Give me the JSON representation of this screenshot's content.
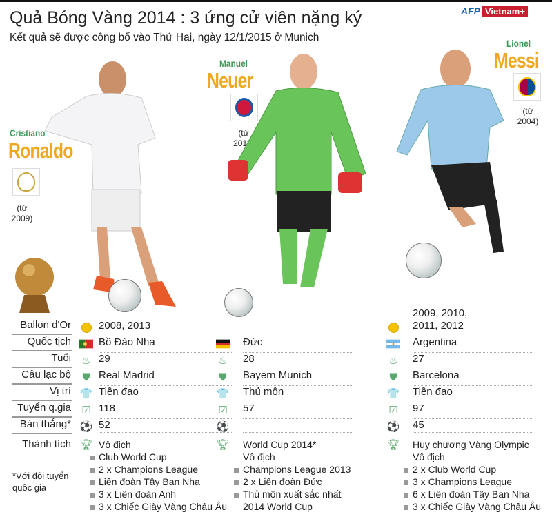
{
  "header": {
    "title": "Quả Bóng Vàng 2014 : 3 ứng cử viên nặng ký",
    "subtitle": "Kết quả sẽ được công bố vào Thứ Hai, ngày 12/1/2015 ở Munich",
    "logo_afp": "AFP",
    "logo_vn": "Vietnam+"
  },
  "labels": [
    "Ballon d'Or",
    "Quốc tịch",
    "Tuổi",
    "Câu lạc bộ",
    "Vị trí",
    "Tuyển q.gia",
    "Bàn thắng*",
    "Thành tích"
  ],
  "icons": [
    "golden-ball-icon",
    "flag-icon",
    "birthday-cake-icon",
    "shield-icon",
    "jersey-icon",
    "checkmark-icon",
    "football-icon",
    "trophy-icon"
  ],
  "note": "*Với đội tuyển quốc gia",
  "colors": {
    "first_name": "#3f9a5a",
    "last_name": "#f0a820",
    "icon": "#5aa86e"
  },
  "players": [
    {
      "first": "Cristiano",
      "last": "Ronaldo",
      "since": "(từ 2009)",
      "club_crest": "real-madrid-crest",
      "ballon": "2008, 2013",
      "nation": "Bồ Đào Nha",
      "age": "29",
      "club": "Real Madrid",
      "position": "Tiền đạo",
      "caps": "118",
      "goals": "52",
      "ach_head": [
        "Vô địch"
      ],
      "ach": [
        "Club World Cup",
        "2 x Champions League",
        "Liên đoàn Tây Ban Nha",
        "3 x Liên đoàn Anh",
        "3 x Chiếc Giày Vàng Châu Âu"
      ]
    },
    {
      "first": "Manuel",
      "last": "Neuer",
      "since": "(từ 2011)",
      "club_crest": "bayern-munich-crest",
      "ballon": "",
      "nation": "Đức",
      "age": "28",
      "club": "Bayern Munich",
      "position": "Thủ môn",
      "caps": "57",
      "goals": "",
      "ach_head": [
        "World Cup 2014*",
        "Vô địch"
      ],
      "ach": [
        "Champions League 2013",
        "2 x Liên đoàn Đức",
        "Thủ môn xuất sắc nhất"
      ],
      "ach_cont": "2014 World Cup"
    },
    {
      "first": "Lionel",
      "last": "Messi",
      "since": "(từ 2004)",
      "club_crest": "barcelona-crest",
      "ballon": "2009, 2010, 2011, 2012",
      "ballon_l1": "2009, 2010,",
      "ballon_l2": "2011, 2012",
      "nation": "Argentina",
      "age": "27",
      "club": "Barcelona",
      "position": "Tiền đạo",
      "caps": "97",
      "goals": "45",
      "ach_head": [
        "Huy chương Vàng Olympic",
        "Vô địch"
      ],
      "ach": [
        "2 x Club World Cup",
        "3 x Champions League",
        "6 x Liên đoàn Tây Ban Nha",
        "3 x Chiếc Giày Vàng Châu Âu"
      ]
    }
  ]
}
